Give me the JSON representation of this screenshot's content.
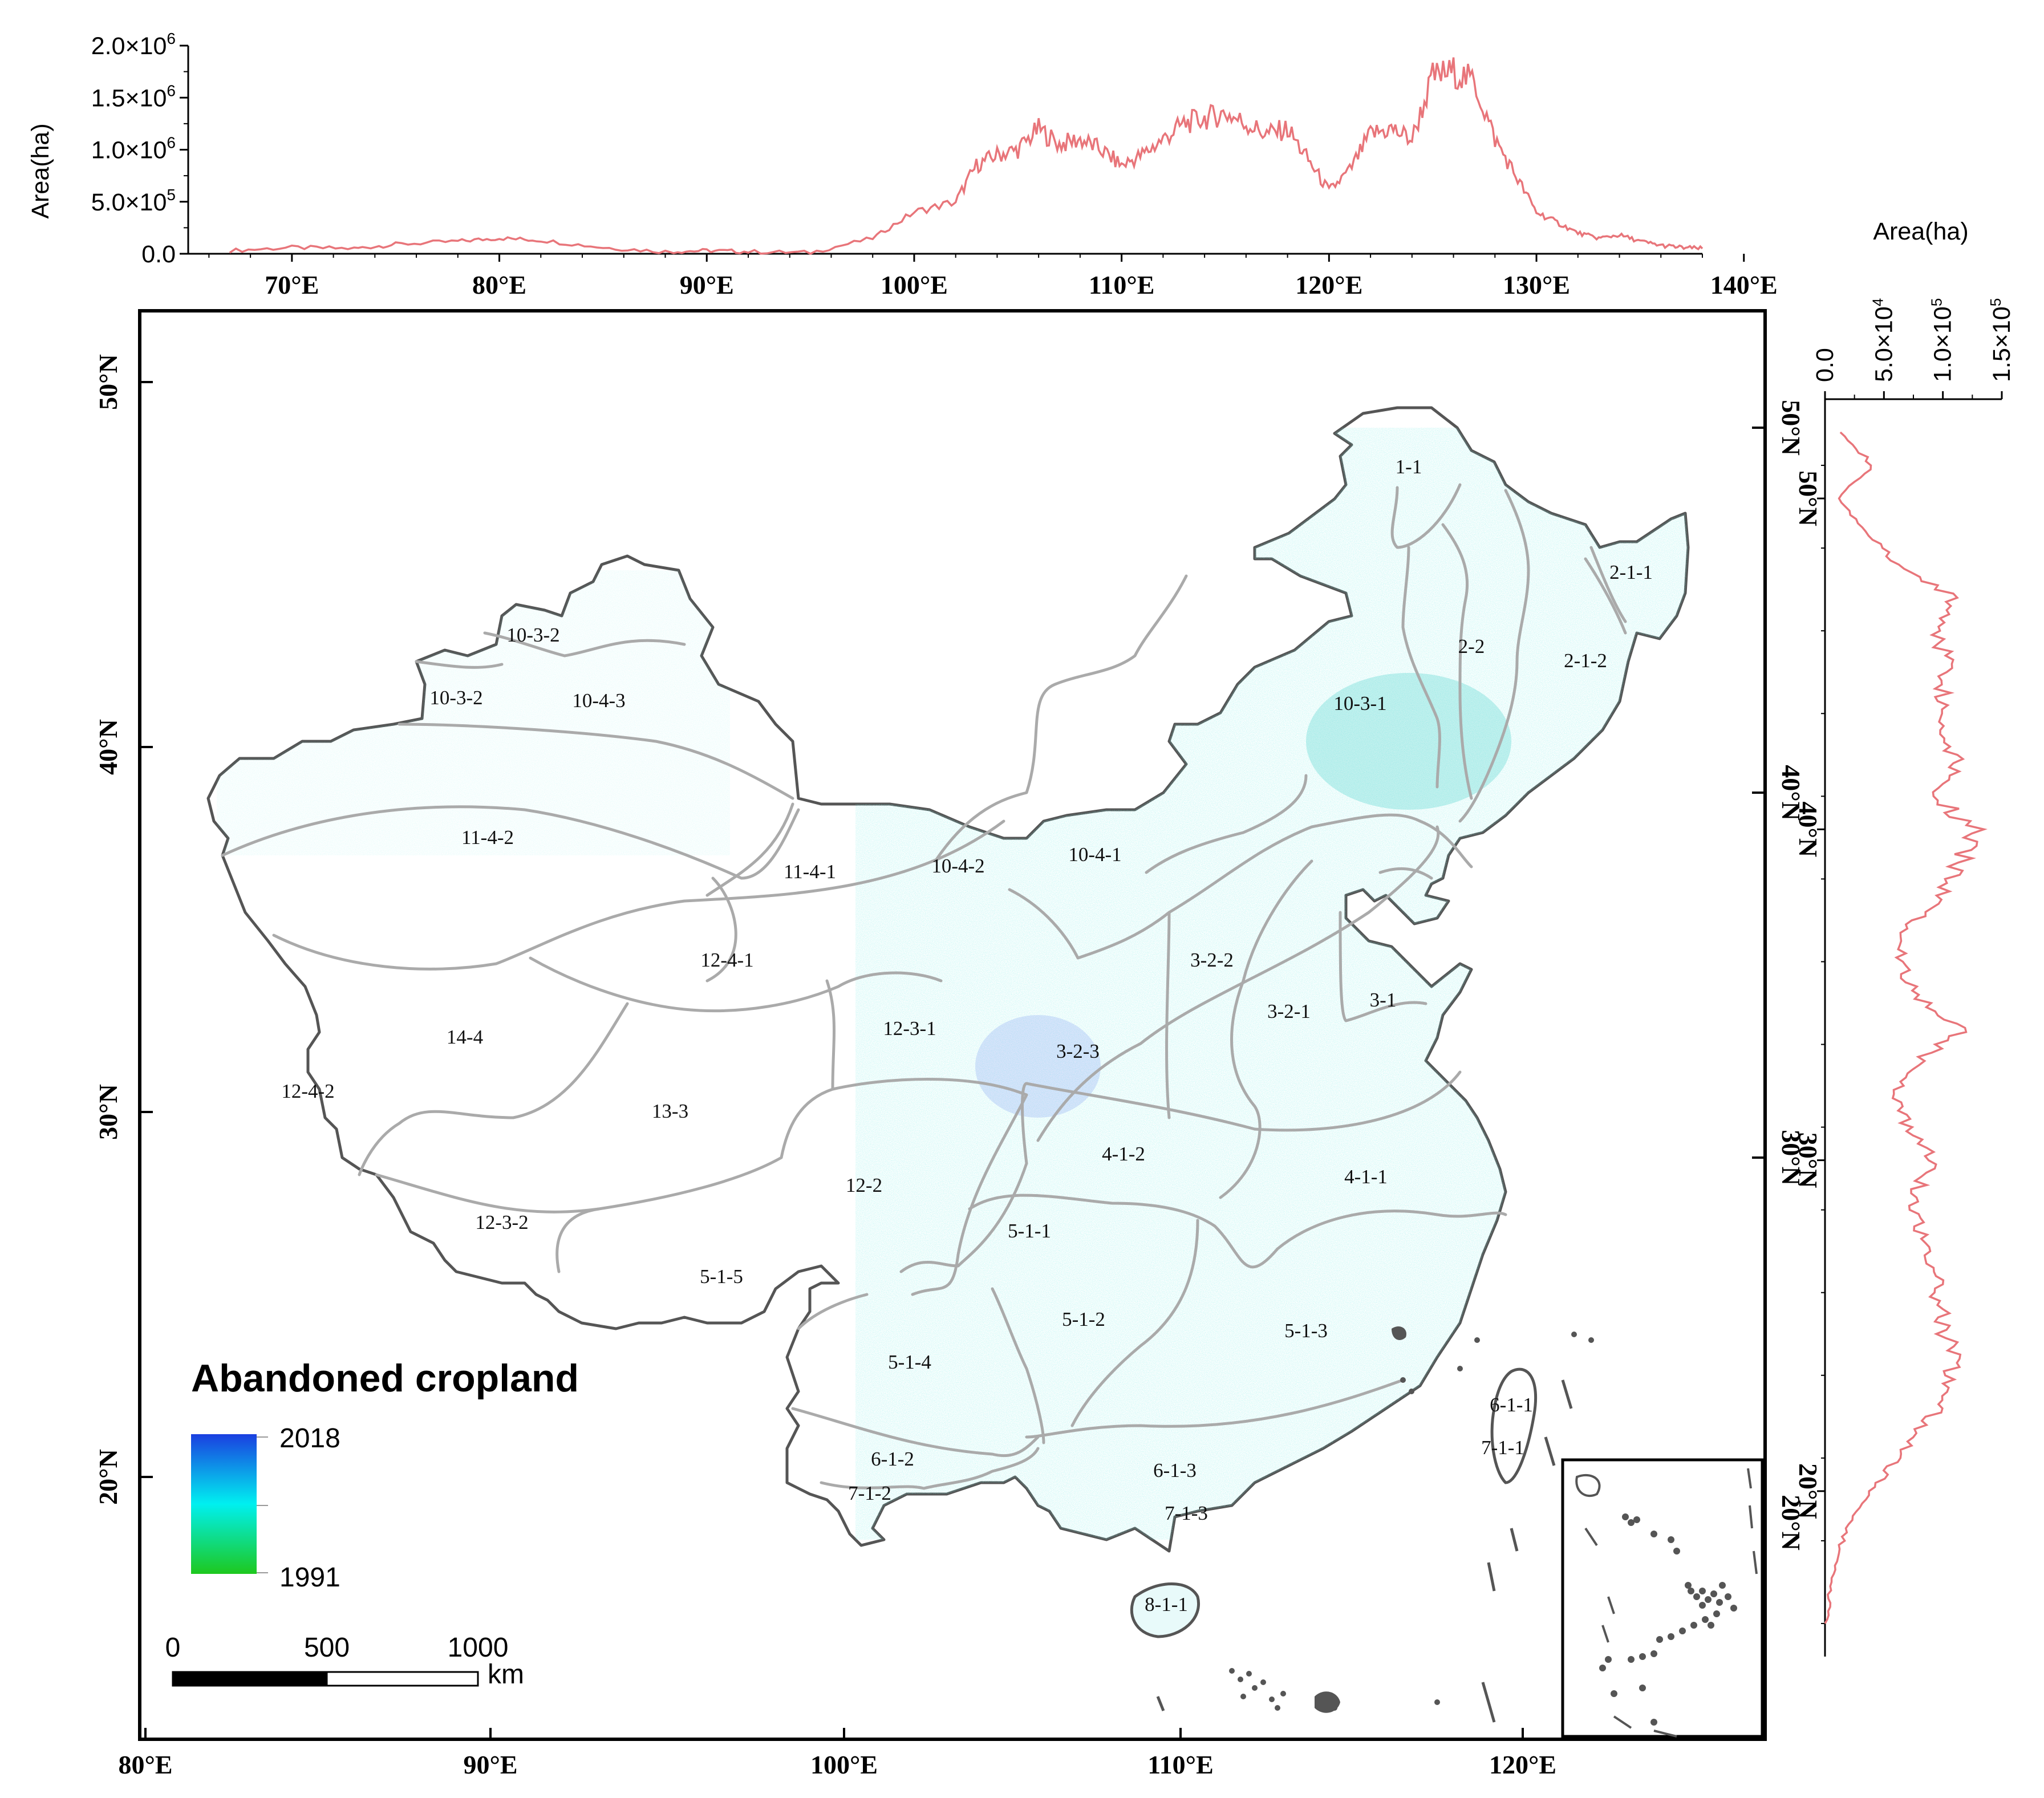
{
  "top_chart": {
    "ylabel": "Area(ha)",
    "yticks": [
      "0.0",
      "5.0×10",
      "1.0×10",
      "1.5×10",
      "2.0×10"
    ],
    "yticks_exp": [
      "",
      "5",
      "6",
      "6",
      "6"
    ],
    "xticks": [
      "70°E",
      "80°E",
      "90°E",
      "100°E",
      "110°E",
      "120°E",
      "130°E",
      "140°E"
    ]
  },
  "right_chart": {
    "xlabel": "Area(ha)",
    "xticks": [
      "0.0",
      "5.0×10",
      "1.0×10",
      "1.5×10"
    ],
    "xticks_exp": [
      "",
      "4",
      "5",
      "5"
    ],
    "yticks": [
      "50°N",
      "40°N",
      "30°N",
      "20°N"
    ]
  },
  "map": {
    "left_ticks": [
      "50°N",
      "40°N",
      "30°N",
      "20°N"
    ],
    "bottom_ticks": [
      "80°E",
      "90°E",
      "100°E",
      "110°E",
      "120°E"
    ],
    "regions": [
      "1-1",
      "2-1-1",
      "2-1-2",
      "2-2",
      "10-3-2",
      "10-3-2",
      "10-4-3",
      "10-3-1",
      "11-4-2",
      "11-4-1",
      "10-4-2",
      "10-4-1",
      "12-4-1",
      "3-2-2",
      "3-2-1",
      "3-1",
      "14-4",
      "12-3-1",
      "3-2-3",
      "12-4-2",
      "13-3",
      "4-1-2",
      "4-1-1",
      "12-2",
      "5-1-1",
      "12-3-2",
      "5-1-5",
      "5-1-2",
      "5-1-3",
      "5-1-4",
      "6-1-1",
      "7-1-1",
      "6-1-2",
      "6-1-3",
      "7-1-2",
      "7-1-3",
      "8-1-1"
    ]
  },
  "legend": {
    "title": "Abandoned cropland",
    "max_label": "2018",
    "min_label": "1991",
    "color_max": "#1a3fe0",
    "color_mid": "#00f0f0",
    "color_min": "#1ec81e"
  },
  "scalebar": {
    "labels": [
      "0",
      "500",
      "1000"
    ],
    "unit": "km"
  },
  "chart_data": [
    {
      "type": "line",
      "title": "",
      "xlabel": "",
      "ylabel": "Area(ha)",
      "xlim": [
        65,
        138
      ],
      "ylim": [
        0,
        2000000
      ],
      "x": [
        67,
        70,
        73,
        75,
        78,
        80,
        82,
        85,
        88,
        90,
        92,
        95,
        98,
        100,
        102,
        103,
        104,
        105,
        106,
        107,
        108,
        109,
        110,
        111,
        112,
        113,
        114,
        115,
        116,
        117,
        118,
        119,
        120,
        121,
        122,
        123,
        124,
        125,
        126,
        127,
        128,
        129,
        130,
        131,
        132,
        133,
        134,
        135,
        136,
        137,
        138
      ],
      "y": [
        30000,
        60000,
        50000,
        90000,
        120000,
        150000,
        130000,
        60000,
        20000,
        30000,
        20000,
        10000,
        150000,
        400000,
        500000,
        850000,
        950000,
        1000000,
        1200000,
        1050000,
        1100000,
        1000000,
        850000,
        950000,
        1100000,
        1250000,
        1300000,
        1350000,
        1250000,
        1150000,
        1200000,
        900000,
        600000,
        800000,
        1150000,
        1200000,
        1100000,
        1700000,
        1750000,
        1650000,
        1100000,
        750000,
        400000,
        300000,
        200000,
        150000,
        180000,
        120000,
        80000,
        60000,
        50000
      ],
      "series": [
        {
          "name": "",
          "color": "#e8757a"
        }
      ]
    },
    {
      "type": "line",
      "title": "",
      "xlabel": "Area(ha)",
      "ylabel": "",
      "xlim": [
        0,
        150000
      ],
      "ylim": [
        15,
        53
      ],
      "y": [
        52,
        51,
        50,
        49,
        48,
        47,
        46,
        45,
        44,
        43,
        42,
        41,
        40,
        39,
        38,
        37,
        36,
        35,
        34,
        33,
        32,
        31,
        30,
        29,
        28,
        27,
        26,
        25,
        24,
        23,
        22,
        21,
        20,
        19,
        18,
        17,
        16
      ],
      "x": [
        15000,
        40000,
        10000,
        35000,
        60000,
        110000,
        95000,
        105000,
        100000,
        100000,
        115000,
        95000,
        125000,
        115000,
        100000,
        70000,
        65000,
        75000,
        120000,
        80000,
        60000,
        70000,
        95000,
        75000,
        80000,
        90000,
        95000,
        100000,
        110000,
        105000,
        85000,
        60000,
        40000,
        20000,
        10000,
        5000,
        0
      ],
      "series": [
        {
          "name": "",
          "color": "#e8757a"
        }
      ]
    }
  ]
}
